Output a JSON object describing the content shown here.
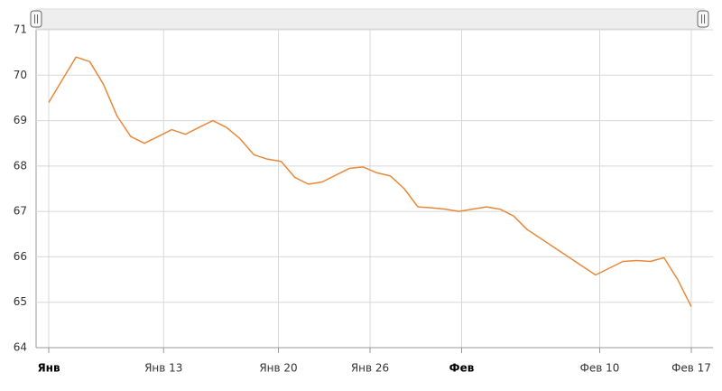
{
  "chart_data": {
    "type": "line",
    "x": [
      0,
      1,
      2,
      3,
      4,
      5,
      6,
      7,
      8,
      9,
      10,
      11,
      12,
      13,
      14,
      15,
      16,
      17,
      18,
      19,
      20,
      21,
      22,
      23,
      24,
      25,
      26,
      27,
      28,
      29,
      30,
      31,
      32,
      33,
      34,
      35,
      36,
      37,
      38,
      39,
      40,
      41,
      42,
      43,
      44,
      45,
      46,
      47
    ],
    "series": [
      {
        "color": "#e8893a",
        "values": [
          69.4,
          69.9,
          70.4,
          70.3,
          69.8,
          69.1,
          68.65,
          68.5,
          68.65,
          68.8,
          68.7,
          68.85,
          69.0,
          68.85,
          68.6,
          68.25,
          68.15,
          68.1,
          67.75,
          67.6,
          67.65,
          67.8,
          67.95,
          67.98,
          67.85,
          67.78,
          67.5,
          67.1,
          67.08,
          67.05,
          67.0,
          67.05,
          67.1,
          67.05,
          66.9,
          66.6,
          66.4,
          66.2,
          66.0,
          65.8,
          65.6,
          65.75,
          65.9,
          65.92,
          65.9,
          65.98,
          65.5,
          64.9
        ]
      }
    ],
    "xlim": [
      0,
      47
    ],
    "xticks": [
      {
        "value": 0,
        "label": "Янв"
      },
      {
        "value": 8.4,
        "label": "Янв 13"
      },
      {
        "value": 16.8,
        "label": "Янв 20"
      },
      {
        "value": 23.5,
        "label": "Янв 26"
      },
      {
        "value": 30.2,
        "label": "Фев"
      },
      {
        "value": 40.3,
        "label": "Фев 10"
      },
      {
        "value": 47,
        "label": "Фев 17"
      }
    ],
    "ylim": [
      64,
      71
    ],
    "yticks": [
      64,
      65,
      66,
      67,
      68,
      69,
      70,
      71
    ],
    "grid": true
  }
}
